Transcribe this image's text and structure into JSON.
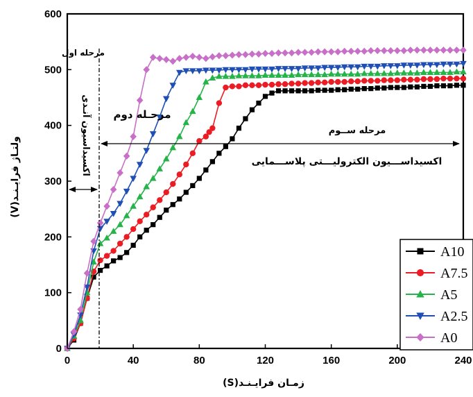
{
  "chart_data": {
    "type": "line",
    "xlabel": "زمـان فرایـنـد(S)",
    "ylabel": "ولتـاژ فرایـنـد(V)",
    "xlim": [
      0,
      240
    ],
    "ylim": [
      0,
      600
    ],
    "xticks": [
      0,
      40,
      80,
      120,
      160,
      200,
      240
    ],
    "yticks": [
      0,
      100,
      200,
      300,
      400,
      500,
      600
    ],
    "legend_position": "bottom-right",
    "annotations": {
      "stage1": "مرحله اول",
      "stage1_desc": "اکسیداسیون آنـدی",
      "stage2": "مرحـله دوم",
      "stage3": "مرحله ســوم",
      "stage3_desc": "اکسیداســـیون الکترولیـــتی پلاســـمایی"
    },
    "series": [
      {
        "name": "A10",
        "color": "#000000",
        "marker": "square",
        "x": [
          0,
          4,
          8,
          12,
          16,
          20,
          24,
          28,
          32,
          36,
          40,
          44,
          48,
          52,
          56,
          60,
          64,
          68,
          72,
          76,
          80,
          84,
          88,
          92,
          96,
          100,
          104,
          108,
          112,
          116,
          120,
          124,
          128,
          132,
          136,
          140,
          144,
          148,
          152,
          156,
          160,
          164,
          168,
          172,
          176,
          180,
          184,
          188,
          192,
          196,
          200,
          204,
          208,
          212,
          216,
          220,
          224,
          228,
          232,
          236,
          240
        ],
        "y": [
          0,
          15,
          45,
          90,
          128,
          140,
          148,
          157,
          163,
          172,
          185,
          200,
          212,
          222,
          235,
          248,
          258,
          268,
          280,
          292,
          305,
          320,
          335,
          350,
          362,
          376,
          395,
          412,
          428,
          440,
          452,
          458,
          462,
          462,
          462,
          462,
          462,
          462,
          463,
          463,
          463,
          464,
          464,
          465,
          465,
          466,
          466,
          467,
          467,
          468,
          468,
          468,
          469,
          469,
          470,
          470,
          471,
          471,
          471,
          472,
          472
        ]
      },
      {
        "name": "A7.5",
        "color": "#ec1c24",
        "marker": "circle",
        "x": [
          0,
          4,
          8,
          12,
          16,
          20,
          24,
          28,
          32,
          36,
          40,
          44,
          48,
          52,
          56,
          60,
          64,
          68,
          72,
          76,
          80,
          84,
          86,
          88,
          92,
          96,
          100,
          104,
          108,
          112,
          116,
          120,
          124,
          128,
          132,
          136,
          140,
          144,
          148,
          152,
          156,
          160,
          164,
          168,
          172,
          176,
          180,
          184,
          188,
          192,
          196,
          200,
          204,
          208,
          212,
          216,
          220,
          224,
          228,
          232,
          236,
          240
        ],
        "y": [
          0,
          18,
          45,
          90,
          138,
          158,
          166,
          175,
          188,
          200,
          214,
          228,
          240,
          253,
          266,
          280,
          295,
          312,
          330,
          350,
          372,
          380,
          388,
          395,
          440,
          468,
          470,
          470,
          472,
          472,
          472,
          473,
          473,
          474,
          474,
          475,
          475,
          476,
          476,
          477,
          477,
          478,
          478,
          478,
          479,
          479,
          480,
          480,
          480,
          481,
          481,
          481,
          482,
          482,
          482,
          483,
          483,
          483,
          484,
          484,
          484,
          484
        ]
      },
      {
        "name": "A5",
        "color": "#26b34a",
        "marker": "triangle-up",
        "x": [
          0,
          4,
          8,
          12,
          16,
          20,
          24,
          28,
          32,
          36,
          40,
          44,
          48,
          52,
          56,
          60,
          64,
          68,
          72,
          76,
          80,
          84,
          88,
          92,
          96,
          100,
          104,
          108,
          112,
          116,
          120,
          124,
          128,
          132,
          136,
          140,
          144,
          148,
          152,
          156,
          160,
          164,
          168,
          172,
          176,
          180,
          184,
          188,
          192,
          196,
          200,
          204,
          208,
          212,
          216,
          220,
          224,
          228,
          232,
          236,
          240
        ],
        "y": [
          0,
          22,
          50,
          100,
          155,
          188,
          198,
          210,
          222,
          238,
          255,
          272,
          290,
          305,
          322,
          340,
          360,
          380,
          405,
          425,
          450,
          478,
          485,
          488,
          488,
          488,
          489,
          489,
          489,
          489,
          490,
          490,
          490,
          490,
          490,
          491,
          491,
          491,
          491,
          491,
          492,
          492,
          492,
          492,
          492,
          493,
          493,
          493,
          493,
          493,
          494,
          494,
          494,
          494,
          495,
          495,
          495,
          495,
          495,
          496,
          496
        ]
      },
      {
        "name": "A2.5",
        "color": "#1f4fb4",
        "marker": "triangle-down",
        "x": [
          0,
          4,
          8,
          12,
          16,
          20,
          24,
          28,
          32,
          36,
          40,
          44,
          48,
          52,
          56,
          60,
          64,
          68,
          72,
          76,
          80,
          84,
          88,
          92,
          96,
          100,
          104,
          108,
          112,
          116,
          120,
          124,
          128,
          132,
          136,
          140,
          144,
          148,
          152,
          156,
          160,
          164,
          168,
          172,
          176,
          180,
          184,
          188,
          192,
          196,
          200,
          204,
          208,
          212,
          216,
          220,
          224,
          228,
          232,
          236,
          240
        ],
        "y": [
          0,
          25,
          60,
          110,
          175,
          215,
          228,
          242,
          260,
          282,
          305,
          330,
          355,
          385,
          415,
          448,
          472,
          495,
          498,
          498,
          498,
          499,
          499,
          499,
          500,
          500,
          500,
          500,
          501,
          501,
          501,
          501,
          502,
          502,
          502,
          502,
          503,
          503,
          503,
          504,
          504,
          504,
          505,
          505,
          505,
          506,
          506,
          506,
          507,
          507,
          507,
          508,
          508,
          508,
          509,
          509,
          509,
          510,
          510,
          510,
          511
        ]
      },
      {
        "name": "A0",
        "color": "#c86fc8",
        "marker": "diamond",
        "x": [
          0,
          4,
          8,
          12,
          16,
          20,
          24,
          28,
          32,
          36,
          40,
          44,
          48,
          52,
          56,
          60,
          64,
          68,
          72,
          76,
          80,
          84,
          88,
          92,
          96,
          100,
          104,
          108,
          112,
          116,
          120,
          124,
          128,
          132,
          136,
          140,
          144,
          148,
          152,
          156,
          160,
          164,
          168,
          172,
          176,
          180,
          184,
          188,
          192,
          196,
          200,
          204,
          208,
          212,
          216,
          220,
          224,
          228,
          232,
          236,
          240
        ],
        "y": [
          0,
          30,
          70,
          135,
          192,
          225,
          255,
          285,
          315,
          345,
          380,
          445,
          500,
          522,
          520,
          518,
          515,
          520,
          522,
          524,
          522,
          520,
          523,
          525,
          525,
          526,
          527,
          527,
          528,
          528,
          529,
          529,
          530,
          530,
          530,
          531,
          531,
          531,
          532,
          532,
          532,
          532,
          533,
          533,
          533,
          533,
          534,
          534,
          534,
          534,
          534,
          534,
          535,
          535,
          535,
          535,
          535,
          535,
          535,
          535,
          535
        ]
      }
    ]
  }
}
